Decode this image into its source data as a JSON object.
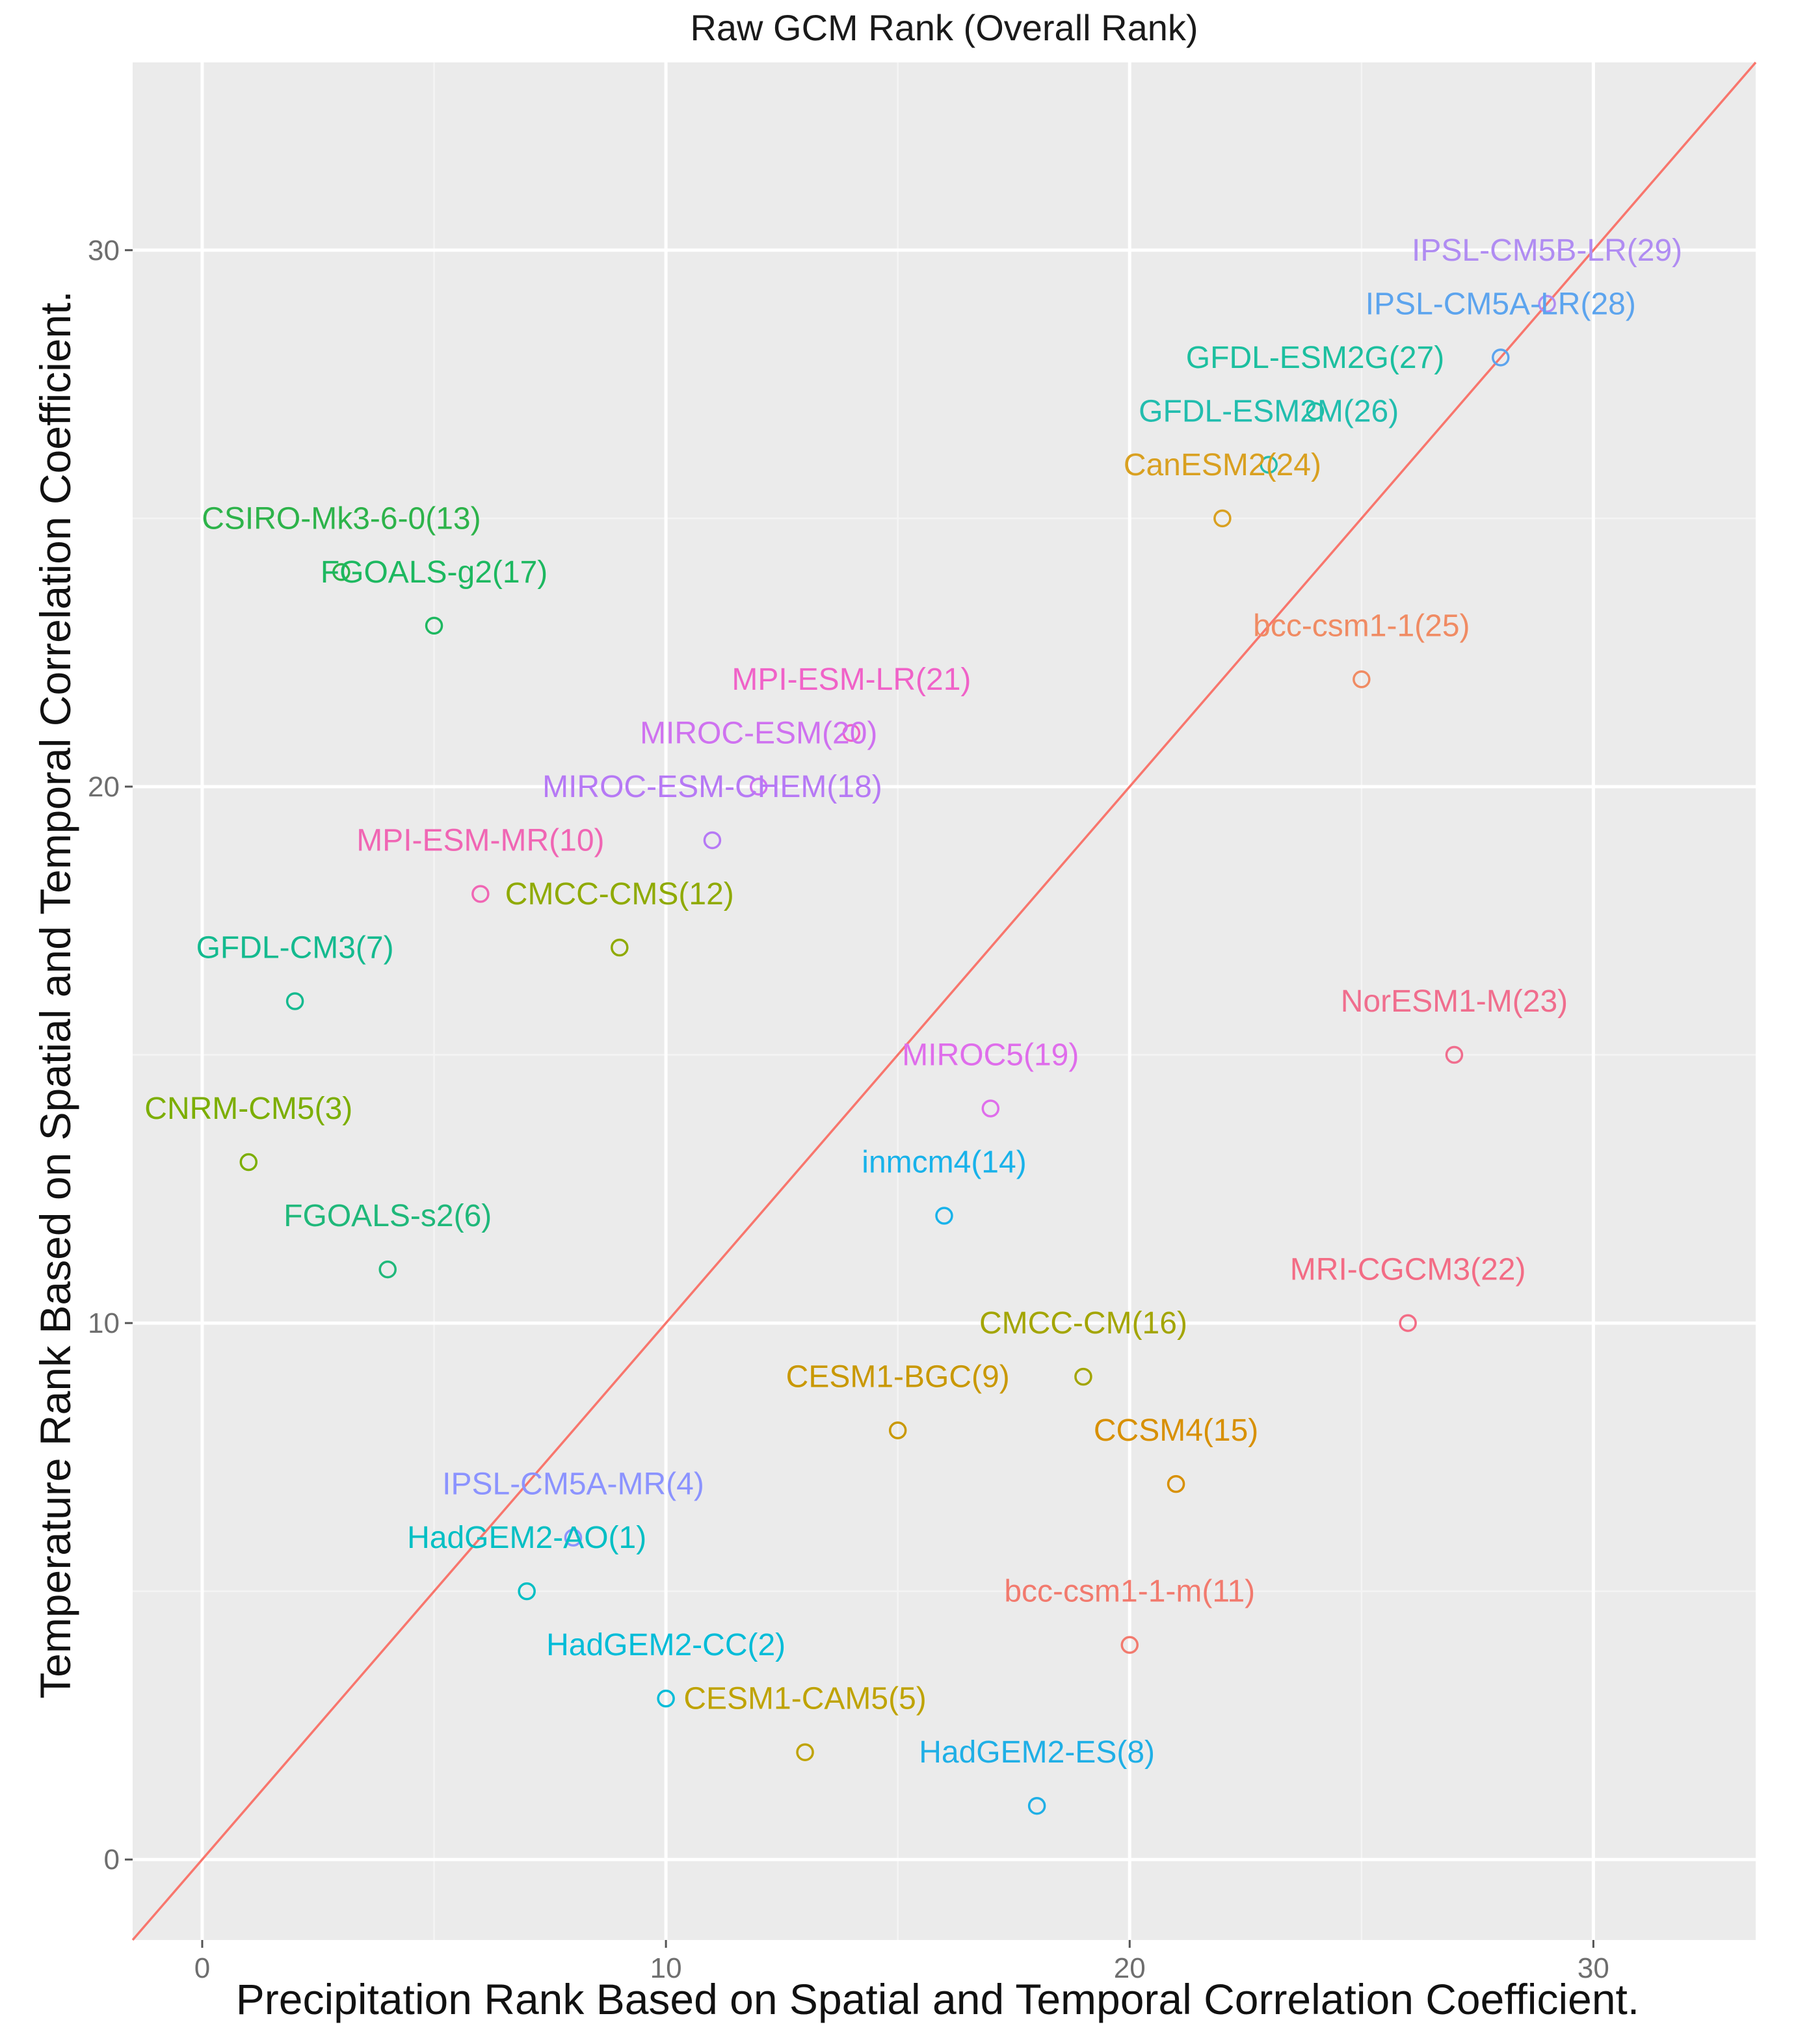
{
  "chart_data": {
    "type": "scatter",
    "title": "Raw GCM Rank (Overall Rank)",
    "xlabel": "Precipitation Rank Based on Spatial and Temporal Correlation Coefficient.",
    "ylabel": "Temperature Rank Based on Spatial and Temporal Correlation Coefficient.",
    "xlim": [
      -1.5,
      33.5
    ],
    "ylim": [
      -1.5,
      33.5
    ],
    "xticks": [
      "0",
      "10",
      "20",
      "30"
    ],
    "yticks": [
      "0",
      "10",
      "20",
      "30"
    ],
    "grid": true,
    "reference_line": "y = x",
    "reference_line_color": "#F8766D",
    "panel_color": "#EBEBEB",
    "points": [
      {
        "label": "HadGEM2-AO(1)",
        "x": 7,
        "y": 5,
        "color": "#00BFC4"
      },
      {
        "label": "HadGEM2-CC(2)",
        "x": 10,
        "y": 3,
        "color": "#00BCD8"
      },
      {
        "label": "CNRM-CM5(3)",
        "x": 1,
        "y": 13,
        "color": "#7CAE00"
      },
      {
        "label": "IPSL-CM5A-MR(4)",
        "x": 8,
        "y": 6,
        "color": "#8B93FF"
      },
      {
        "label": "CESM1-CAM5(5)",
        "x": 13,
        "y": 2,
        "color": "#BFA300"
      },
      {
        "label": "FGOALS-s2(6)",
        "x": 4,
        "y": 11,
        "color": "#1FB87A"
      },
      {
        "label": "GFDL-CM3(7)",
        "x": 2,
        "y": 16,
        "color": "#14BA8F"
      },
      {
        "label": "HadGEM2-ES(8)",
        "x": 18,
        "y": 1,
        "color": "#1FAFE6"
      },
      {
        "label": "CESM1-BGC(9)",
        "x": 15,
        "y": 8,
        "color": "#C99800"
      },
      {
        "label": "MPI-ESM-MR(10)",
        "x": 6,
        "y": 18,
        "color": "#F066B4"
      },
      {
        "label": "bcc-csm1-1-m(11)",
        "x": 20,
        "y": 4,
        "color": "#F27A6E"
      },
      {
        "label": "CMCC-CMS(12)",
        "x": 9,
        "y": 17,
        "color": "#8FAA00"
      },
      {
        "label": "CSIRO-Mk3-6-0(13)",
        "x": 3,
        "y": 24,
        "color": "#2DB34A"
      },
      {
        "label": "inmcm4(14)",
        "x": 16,
        "y": 12,
        "color": "#18B2EA"
      },
      {
        "label": "CCSM4(15)",
        "x": 21,
        "y": 7,
        "color": "#D89000"
      },
      {
        "label": "CMCC-CM(16)",
        "x": 19,
        "y": 9,
        "color": "#A3A500"
      },
      {
        "label": "FGOALS-g2(17)",
        "x": 5,
        "y": 23,
        "color": "#1DB860"
      },
      {
        "label": "MIROC-ESM-CHEM(18)",
        "x": 11,
        "y": 19,
        "color": "#B679F5"
      },
      {
        "label": "MIROC5(19)",
        "x": 17,
        "y": 14,
        "color": "#DF6DEB"
      },
      {
        "label": "MIROC-ESM(20)",
        "x": 12,
        "y": 20,
        "color": "#CF72F0"
      },
      {
        "label": "MPI-ESM-LR(21)",
        "x": 14,
        "y": 21,
        "color": "#F062C8"
      },
      {
        "label": "MRI-CGCM3(22)",
        "x": 26,
        "y": 10,
        "color": "#F36C85"
      },
      {
        "label": "NorESM1-M(23)",
        "x": 27,
        "y": 15,
        "color": "#F06E8E"
      },
      {
        "label": "CanESM2(24)",
        "x": 22,
        "y": 25,
        "color": "#D9A020"
      },
      {
        "label": "bcc-csm1-1(25)",
        "x": 25,
        "y": 22,
        "color": "#F08B63"
      },
      {
        "label": "GFDL-ESM2M(26)",
        "x": 23,
        "y": 26,
        "color": "#22BDAE"
      },
      {
        "label": "GFDL-ESM2G(27)",
        "x": 24,
        "y": 27,
        "color": "#1CBF9F"
      },
      {
        "label": "IPSL-CM5A-LR(28)",
        "x": 28,
        "y": 28,
        "color": "#5CA4EE"
      },
      {
        "label": "IPSL-CM5B-LR(29)",
        "x": 29,
        "y": 29,
        "color": "#B08CF2"
      }
    ]
  }
}
